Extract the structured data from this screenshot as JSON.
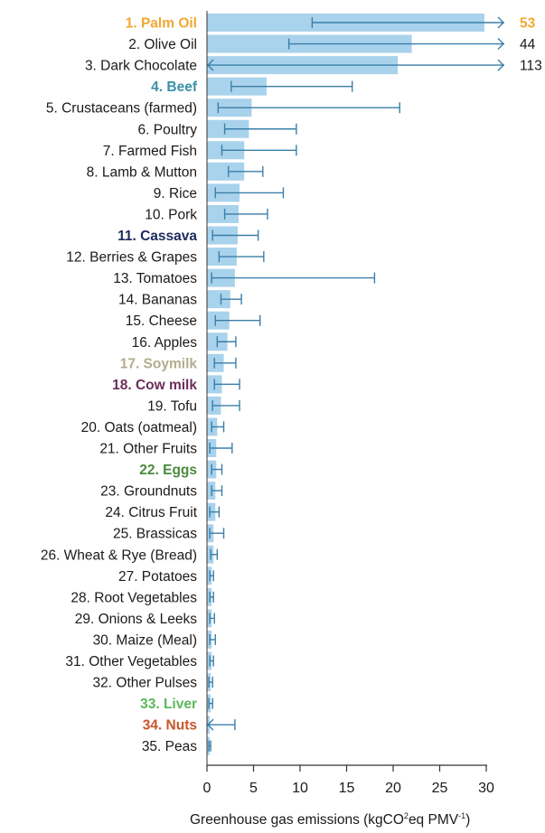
{
  "chart_data": {
    "type": "bar",
    "orientation": "horizontal",
    "title": "",
    "xlabel_parts": [
      "Greenhouse gas emissions (kgCO",
      "2",
      "eq PMV",
      "-1",
      ")"
    ],
    "ylabel": "",
    "xlim": [
      0,
      30
    ],
    "xticks": [
      "0",
      "5",
      "10",
      "15",
      "20",
      "25",
      "30"
    ],
    "grid": false,
    "legend": "none",
    "colors": {
      "bar": "#a9d2ec",
      "whisker": "#3a7fa8",
      "axis": "#333333",
      "label_default": "#1a1a1a"
    },
    "categories": [
      {
        "label": "1. Palm Oil",
        "value": 29.8,
        "low": 11.3,
        "high": 30,
        "clip_high": "53",
        "clip_low": "",
        "color": "#f0a832",
        "bold": true
      },
      {
        "label": "2. Olive Oil",
        "value": 22.0,
        "low": 8.8,
        "high": 30,
        "clip_high": "44",
        "clip_low": "",
        "color": "#1a1a1a",
        "bold": false
      },
      {
        "label": "3. Dark Chocolate",
        "value": 20.5,
        "low": 0,
        "high": 30,
        "clip_high": "113",
        "clip_low": "yes",
        "color": "#1a1a1a",
        "bold": false
      },
      {
        "label": "4. Beef",
        "value": 6.4,
        "low": 2.6,
        "high": 15.6,
        "clip_high": "",
        "clip_low": "",
        "color": "#3a8fa8",
        "bold": true
      },
      {
        "label": "5. Crustaceans (farmed)",
        "value": 4.8,
        "low": 1.2,
        "high": 20.7,
        "clip_high": "",
        "clip_low": "",
        "color": "#1a1a1a",
        "bold": false
      },
      {
        "label": "6. Poultry",
        "value": 4.5,
        "low": 1.9,
        "high": 9.6,
        "clip_high": "",
        "clip_low": "",
        "color": "#1a1a1a",
        "bold": false
      },
      {
        "label": "7. Farmed Fish",
        "value": 4.0,
        "low": 1.6,
        "high": 9.6,
        "clip_high": "",
        "clip_low": "",
        "color": "#1a1a1a",
        "bold": false
      },
      {
        "label": "8. Lamb & Mutton",
        "value": 4.0,
        "low": 2.3,
        "high": 6.0,
        "clip_high": "",
        "clip_low": "",
        "color": "#1a1a1a",
        "bold": false
      },
      {
        "label": "9. Rice",
        "value": 3.5,
        "low": 0.9,
        "high": 8.2,
        "clip_high": "",
        "clip_low": "",
        "color": "#1a1a1a",
        "bold": false
      },
      {
        "label": "10. Pork",
        "value": 3.4,
        "low": 1.9,
        "high": 6.5,
        "clip_high": "",
        "clip_low": "",
        "color": "#1a1a1a",
        "bold": false
      },
      {
        "label": "11. Cassava",
        "value": 3.3,
        "low": 0.6,
        "high": 5.5,
        "clip_high": "",
        "clip_low": "",
        "color": "#1c2a5e",
        "bold": true
      },
      {
        "label": "12. Berries & Grapes",
        "value": 3.2,
        "low": 1.3,
        "high": 6.1,
        "clip_high": "",
        "clip_low": "",
        "color": "#1a1a1a",
        "bold": false
      },
      {
        "label": "13. Tomatoes",
        "value": 3.0,
        "low": 0.5,
        "high": 18.0,
        "clip_high": "",
        "clip_low": "",
        "color": "#1a1a1a",
        "bold": false
      },
      {
        "label": "14. Bananas",
        "value": 2.5,
        "low": 1.5,
        "high": 3.7,
        "clip_high": "",
        "clip_low": "",
        "color": "#1a1a1a",
        "bold": false
      },
      {
        "label": "15. Cheese",
        "value": 2.4,
        "low": 0.9,
        "high": 5.7,
        "clip_high": "",
        "clip_low": "",
        "color": "#1a1a1a",
        "bold": false
      },
      {
        "label": "16. Apples",
        "value": 2.2,
        "low": 1.1,
        "high": 3.1,
        "clip_high": "",
        "clip_low": "",
        "color": "#1a1a1a",
        "bold": false
      },
      {
        "label": "17. Soymilk",
        "value": 1.8,
        "low": 0.8,
        "high": 3.1,
        "clip_high": "",
        "clip_low": "",
        "color": "#b3ab8e",
        "bold": true
      },
      {
        "label": "18. Cow milk",
        "value": 1.6,
        "low": 0.8,
        "high": 3.5,
        "clip_high": "",
        "clip_low": "",
        "color": "#6b2e5c",
        "bold": true
      },
      {
        "label": "19. Tofu",
        "value": 1.5,
        "low": 0.6,
        "high": 3.5,
        "clip_high": "",
        "clip_low": "",
        "color": "#1a1a1a",
        "bold": false
      },
      {
        "label": "20. Oats (oatmeal)",
        "value": 1.1,
        "low": 0.5,
        "high": 1.8,
        "clip_high": "",
        "clip_low": "",
        "color": "#1a1a1a",
        "bold": false
      },
      {
        "label": "21. Other Fruits",
        "value": 1.0,
        "low": 0.3,
        "high": 2.7,
        "clip_high": "",
        "clip_low": "",
        "color": "#1a1a1a",
        "bold": false
      },
      {
        "label": "22. Eggs",
        "value": 1.0,
        "low": 0.5,
        "high": 1.6,
        "clip_high": "",
        "clip_low": "",
        "color": "#4a8a3c",
        "bold": true
      },
      {
        "label": "23. Groundnuts",
        "value": 0.9,
        "low": 0.5,
        "high": 1.6,
        "clip_high": "",
        "clip_low": "",
        "color": "#1a1a1a",
        "bold": false
      },
      {
        "label": "24. Citrus Fruit",
        "value": 0.9,
        "low": 0.3,
        "high": 1.3,
        "clip_high": "",
        "clip_low": "",
        "color": "#1a1a1a",
        "bold": false
      },
      {
        "label": "25. Brassicas",
        "value": 0.7,
        "low": 0.3,
        "high": 1.8,
        "clip_high": "",
        "clip_low": "",
        "color": "#1a1a1a",
        "bold": false
      },
      {
        "label": "26. Wheat & Rye (Bread)",
        "value": 0.7,
        "low": 0.4,
        "high": 1.1,
        "clip_high": "",
        "clip_low": "",
        "color": "#1a1a1a",
        "bold": false
      },
      {
        "label": "27. Potatoes",
        "value": 0.5,
        "low": 0.3,
        "high": 0.7,
        "clip_high": "",
        "clip_low": "",
        "color": "#1a1a1a",
        "bold": false
      },
      {
        "label": "28. Root Vegetables",
        "value": 0.5,
        "low": 0.3,
        "high": 0.7,
        "clip_high": "",
        "clip_low": "",
        "color": "#1a1a1a",
        "bold": false
      },
      {
        "label": "29. Onions & Leeks",
        "value": 0.5,
        "low": 0.3,
        "high": 0.8,
        "clip_high": "",
        "clip_low": "",
        "color": "#1a1a1a",
        "bold": false
      },
      {
        "label": "30. Maize (Meal)",
        "value": 0.5,
        "low": 0.3,
        "high": 0.9,
        "clip_high": "",
        "clip_low": "",
        "color": "#1a1a1a",
        "bold": false
      },
      {
        "label": "31. Other Vegetables",
        "value": 0.5,
        "low": 0.3,
        "high": 0.7,
        "clip_high": "",
        "clip_low": "",
        "color": "#1a1a1a",
        "bold": false
      },
      {
        "label": "32. Other Pulses",
        "value": 0.4,
        "low": 0.2,
        "high": 0.6,
        "clip_high": "",
        "clip_low": "",
        "color": "#1a1a1a",
        "bold": false
      },
      {
        "label": "33. Liver",
        "value": 0.4,
        "low": 0.2,
        "high": 0.6,
        "clip_high": "",
        "clip_low": "",
        "color": "#5cb85c",
        "bold": true
      },
      {
        "label": "34. Nuts",
        "value": 0.3,
        "low": 0,
        "high": 3.0,
        "clip_high": "",
        "clip_low": "yes",
        "color": "#c8562b",
        "bold": true
      },
      {
        "label": "35. Peas",
        "value": 0.3,
        "low": 0.2,
        "high": 0.4,
        "clip_high": "",
        "clip_low": "",
        "color": "#1a1a1a",
        "bold": false
      }
    ]
  }
}
